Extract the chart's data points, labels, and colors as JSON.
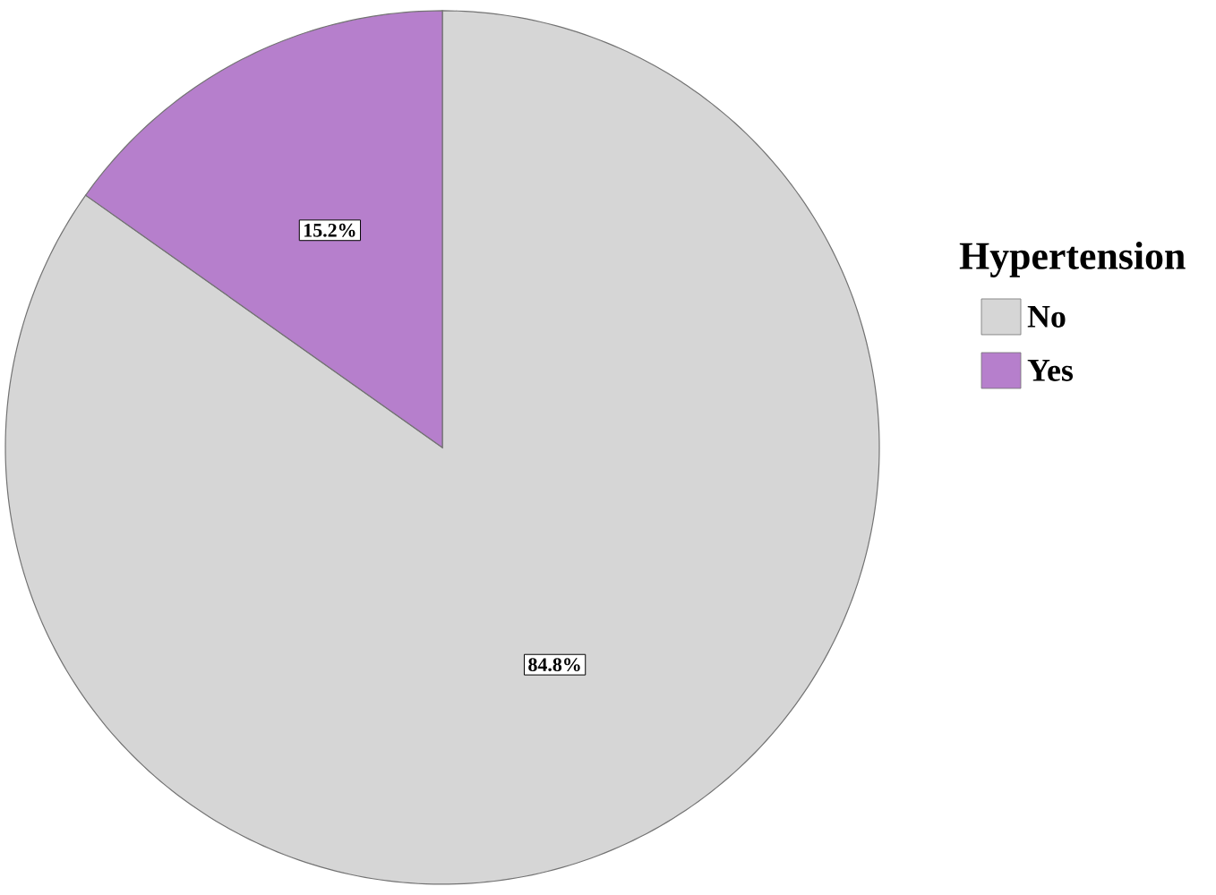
{
  "chart_data": {
    "type": "pie",
    "legend_title": "Hypertension",
    "legend": "right",
    "categories": [
      "No",
      "Yes"
    ],
    "values": [
      84.8,
      15.2
    ],
    "value_labels": [
      "84.8%",
      "15.2%"
    ],
    "colors": [
      "#d6d6d6",
      "#b67fcc"
    ]
  }
}
